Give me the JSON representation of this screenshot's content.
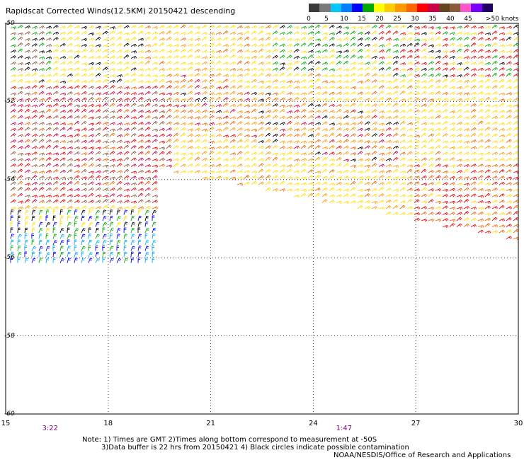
{
  "title": "Rapidscat Corrected Winds(12.5KM) 20150421 descending",
  "legend": {
    "colors": [
      "#3a3a3a",
      "#7a7a7a",
      "#00c8ff",
      "#0080ff",
      "#0000ff",
      "#00aa00",
      "#ffff00",
      "#ffcc00",
      "#ff9900",
      "#ff6600",
      "#ff0000",
      "#cc0044",
      "#664422",
      "#8a5a3a",
      "#ff55cc",
      "#7700ff",
      "#220066"
    ],
    "labels": [
      "0",
      "5",
      "10",
      "15",
      "20",
      "25",
      "30",
      "35",
      "40",
      "45",
      ">50 knots"
    ]
  },
  "map": {
    "lat_ticks": [
      "-50",
      "-52",
      "-54",
      "-56",
      "-58",
      "-60"
    ],
    "lon_ticks": [
      "15",
      "18",
      "21",
      "24",
      "27",
      "30"
    ],
    "lat_range": [
      -60,
      -50
    ],
    "lon_range": [
      15,
      30
    ],
    "time_labels": [
      {
        "text": "3:22",
        "lon": 16.3
      },
      {
        "text": "1:47",
        "lon": 24.9
      }
    ],
    "grid": true
  },
  "notes": [
    "Note: 1) Times are GMT 2)Times along bottom correspond to measurement at -50S",
    "3)Data buffer is 22 hrs from 20150421 4) Black circles indicate possible contamination",
    "NOAA/NESDIS/Office of Research and Applications"
  ],
  "palette": {
    "yellow": "#ffdd00",
    "orange": "#ff9900",
    "dark_orange": "#ee6600",
    "red": "#ee0000",
    "crimson": "#cc0044",
    "brown": "#8a5a3a",
    "green": "#00aa00",
    "blue": "#0000ff",
    "cyan": "#00aaff",
    "black": "#000000",
    "magenta": "#cc00cc"
  }
}
